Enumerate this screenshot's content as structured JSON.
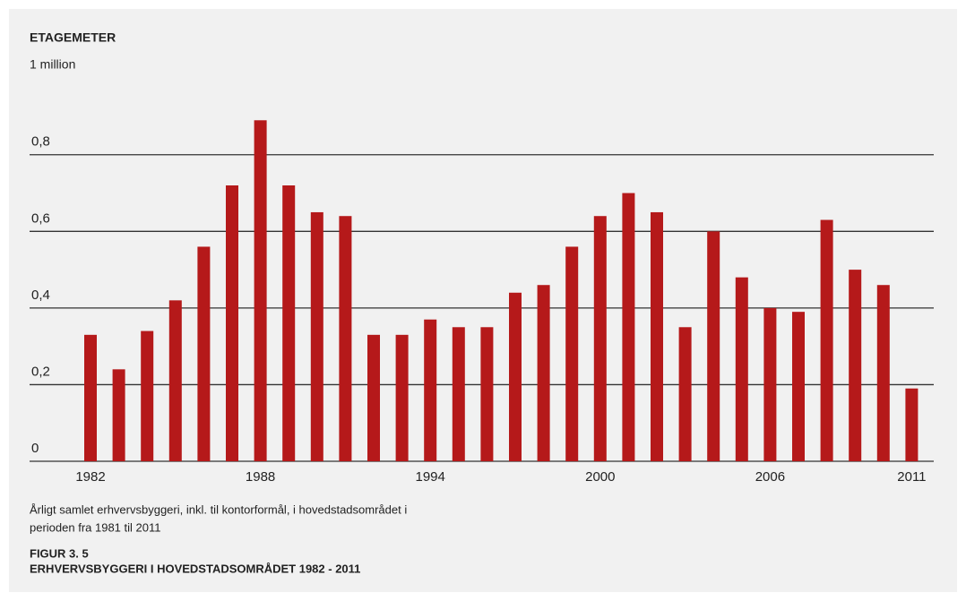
{
  "chart_data": {
    "type": "bar",
    "axis_title": "ETAGEMETER",
    "unit": "1 million",
    "caption": [
      "Årligt samlet erhvervsbyggeri, inkl. til kontorformål, i hovedstadsområdet i",
      "perioden fra 1981 til 2011"
    ],
    "figure_label": "FIGUR 3. 5",
    "title": "ERHVERVSBYGGERI I HOVEDSTADSOMRÅDET 1982 - 2011",
    "categories": [
      "1982",
      null,
      null,
      null,
      null,
      null,
      "1988",
      null,
      null,
      null,
      null,
      null,
      "1994",
      null,
      null,
      null,
      null,
      null,
      "2000",
      null,
      null,
      null,
      null,
      null,
      "2006",
      null,
      null,
      null,
      null,
      "2011"
    ],
    "values": [
      0.33,
      0.24,
      0.34,
      0.42,
      0.56,
      0.72,
      0.89,
      0.72,
      0.65,
      0.64,
      0.33,
      0.33,
      0.37,
      0.35,
      0.35,
      0.44,
      0.46,
      0.56,
      0.64,
      0.7,
      0.65,
      0.35,
      0.6,
      0.48,
      0.4,
      0.39,
      0.63,
      0.5,
      0.46,
      0.19
    ],
    "color": "#b5191a",
    "ylim": [
      0,
      0.9
    ],
    "yticks": [
      0,
      {
        "value": 0.2,
        "label": "0,2"
      },
      {
        "value": 0.4,
        "label": "0,4"
      },
      {
        "value": 0.6,
        "label": "0,6"
      },
      {
        "value": 0.8,
        "label": "0,8"
      }
    ],
    "grid": true
  }
}
